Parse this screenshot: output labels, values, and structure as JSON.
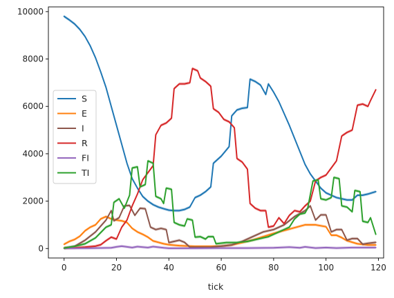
{
  "chart_data": {
    "type": "line",
    "title": "",
    "xlabel": "tick",
    "ylabel": "",
    "xlim": [
      -6,
      122
    ],
    "ylim": [
      -400,
      10200
    ],
    "xticks": [
      0,
      20,
      40,
      60,
      80,
      100,
      120
    ],
    "yticks": [
      0,
      2000,
      4000,
      6000,
      8000,
      10000
    ],
    "grid": false,
    "legend_position": "center-left",
    "has_confidence_band": true,
    "series": [
      {
        "name": "S",
        "color": "#1f77b4",
        "points": [
          [
            0,
            9800
          ],
          [
            2,
            9650
          ],
          [
            4,
            9480
          ],
          [
            6,
            9250
          ],
          [
            8,
            8950
          ],
          [
            10,
            8550
          ],
          [
            12,
            8050
          ],
          [
            14,
            7450
          ],
          [
            16,
            6800
          ],
          [
            18,
            6000
          ],
          [
            20,
            5200
          ],
          [
            22,
            4400
          ],
          [
            24,
            3600
          ],
          [
            26,
            2950
          ],
          [
            28,
            2550
          ],
          [
            30,
            2200
          ],
          [
            32,
            2000
          ],
          [
            34,
            1850
          ],
          [
            36,
            1750
          ],
          [
            38,
            1680
          ],
          [
            40,
            1620
          ],
          [
            42,
            1600
          ],
          [
            44,
            1600
          ],
          [
            46,
            1650
          ],
          [
            48,
            1750
          ],
          [
            50,
            2150
          ],
          [
            52,
            2250
          ],
          [
            54,
            2400
          ],
          [
            56,
            2600
          ],
          [
            57,
            3600
          ],
          [
            60,
            3900
          ],
          [
            63,
            4300
          ],
          [
            64,
            5600
          ],
          [
            66,
            5850
          ],
          [
            68,
            5920
          ],
          [
            70,
            5950
          ],
          [
            71,
            7150
          ],
          [
            73,
            7050
          ],
          [
            75,
            6900
          ],
          [
            77,
            6500
          ],
          [
            78,
            6950
          ],
          [
            80,
            6600
          ],
          [
            82,
            6200
          ],
          [
            84,
            5700
          ],
          [
            86,
            5200
          ],
          [
            88,
            4650
          ],
          [
            90,
            4100
          ],
          [
            92,
            3550
          ],
          [
            94,
            3150
          ],
          [
            96,
            2850
          ],
          [
            98,
            2550
          ],
          [
            100,
            2350
          ],
          [
            102,
            2250
          ],
          [
            104,
            2150
          ],
          [
            106,
            2100
          ],
          [
            108,
            2050
          ],
          [
            110,
            2050
          ],
          [
            112,
            2250
          ],
          [
            114,
            2250
          ],
          [
            116,
            2300
          ],
          [
            119,
            2400
          ]
        ]
      },
      {
        "name": "E",
        "color": "#ff7f0e",
        "points": [
          [
            0,
            180
          ],
          [
            2,
            300
          ],
          [
            4,
            380
          ],
          [
            6,
            520
          ],
          [
            8,
            750
          ],
          [
            10,
            900
          ],
          [
            12,
            1000
          ],
          [
            14,
            1250
          ],
          [
            16,
            1350
          ],
          [
            18,
            1250
          ],
          [
            20,
            1200
          ],
          [
            22,
            1170
          ],
          [
            24,
            1100
          ],
          [
            26,
            850
          ],
          [
            28,
            700
          ],
          [
            30,
            600
          ],
          [
            32,
            480
          ],
          [
            34,
            320
          ],
          [
            36,
            260
          ],
          [
            38,
            200
          ],
          [
            40,
            160
          ],
          [
            44,
            120
          ],
          [
            50,
            90
          ],
          [
            56,
            90
          ],
          [
            60,
            100
          ],
          [
            64,
            150
          ],
          [
            68,
            250
          ],
          [
            72,
            360
          ],
          [
            76,
            500
          ],
          [
            80,
            640
          ],
          [
            84,
            760
          ],
          [
            88,
            880
          ],
          [
            92,
            1000
          ],
          [
            96,
            1000
          ],
          [
            100,
            920
          ],
          [
            102,
            560
          ],
          [
            104,
            560
          ],
          [
            106,
            460
          ],
          [
            108,
            330
          ],
          [
            112,
            200
          ],
          [
            116,
            150
          ],
          [
            119,
            150
          ]
        ]
      },
      {
        "name": "I",
        "color": "#8c564b",
        "points": [
          [
            0,
            20
          ],
          [
            4,
            90
          ],
          [
            8,
            350
          ],
          [
            12,
            700
          ],
          [
            16,
            1200
          ],
          [
            18,
            1600
          ],
          [
            19,
            1170
          ],
          [
            21,
            1300
          ],
          [
            23,
            1800
          ],
          [
            25,
            1820
          ],
          [
            27,
            1400
          ],
          [
            29,
            1700
          ],
          [
            31,
            1680
          ],
          [
            33,
            900
          ],
          [
            35,
            800
          ],
          [
            37,
            850
          ],
          [
            39,
            800
          ],
          [
            40,
            250
          ],
          [
            42,
            300
          ],
          [
            44,
            350
          ],
          [
            46,
            260
          ],
          [
            48,
            60
          ],
          [
            56,
            60
          ],
          [
            60,
            100
          ],
          [
            64,
            150
          ],
          [
            68,
            300
          ],
          [
            72,
            500
          ],
          [
            76,
            700
          ],
          [
            80,
            800
          ],
          [
            84,
            1000
          ],
          [
            88,
            1350
          ],
          [
            92,
            1600
          ],
          [
            94,
            1800
          ],
          [
            96,
            1200
          ],
          [
            98,
            1420
          ],
          [
            100,
            1420
          ],
          [
            102,
            700
          ],
          [
            104,
            800
          ],
          [
            106,
            800
          ],
          [
            108,
            350
          ],
          [
            110,
            420
          ],
          [
            112,
            420
          ],
          [
            114,
            180
          ],
          [
            116,
            220
          ],
          [
            119,
            260
          ]
        ]
      },
      {
        "name": "R",
        "color": "#d62728",
        "points": [
          [
            0,
            20
          ],
          [
            4,
            30
          ],
          [
            8,
            60
          ],
          [
            12,
            100
          ],
          [
            14,
            160
          ],
          [
            16,
            330
          ],
          [
            18,
            480
          ],
          [
            20,
            400
          ],
          [
            22,
            900
          ],
          [
            24,
            1200
          ],
          [
            26,
            1800
          ],
          [
            28,
            2300
          ],
          [
            30,
            2900
          ],
          [
            32,
            3200
          ],
          [
            34,
            3500
          ],
          [
            35,
            4800
          ],
          [
            37,
            5200
          ],
          [
            39,
            5300
          ],
          [
            41,
            5500
          ],
          [
            42,
            6750
          ],
          [
            44,
            6950
          ],
          [
            46,
            6950
          ],
          [
            48,
            7000
          ],
          [
            49,
            7600
          ],
          [
            51,
            7500
          ],
          [
            52,
            7200
          ],
          [
            54,
            7050
          ],
          [
            56,
            6850
          ],
          [
            57,
            5900
          ],
          [
            59,
            5750
          ],
          [
            61,
            5450
          ],
          [
            63,
            5350
          ],
          [
            65,
            5100
          ],
          [
            66,
            3800
          ],
          [
            68,
            3650
          ],
          [
            70,
            3350
          ],
          [
            71,
            1900
          ],
          [
            73,
            1700
          ],
          [
            75,
            1600
          ],
          [
            77,
            1600
          ],
          [
            78,
            900
          ],
          [
            80,
            950
          ],
          [
            82,
            1300
          ],
          [
            84,
            1050
          ],
          [
            86,
            1400
          ],
          [
            88,
            1600
          ],
          [
            90,
            1550
          ],
          [
            92,
            1800
          ],
          [
            94,
            2000
          ],
          [
            96,
            2850
          ],
          [
            98,
            3000
          ],
          [
            100,
            3100
          ],
          [
            102,
            3400
          ],
          [
            104,
            3700
          ],
          [
            106,
            4750
          ],
          [
            108,
            4900
          ],
          [
            110,
            5000
          ],
          [
            112,
            6050
          ],
          [
            114,
            6100
          ],
          [
            116,
            6000
          ],
          [
            117,
            6250
          ],
          [
            119,
            6700
          ]
        ]
      },
      {
        "name": "FI",
        "color": "#9467bd",
        "points": [
          [
            0,
            10
          ],
          [
            10,
            15
          ],
          [
            18,
            30
          ],
          [
            20,
            70
          ],
          [
            22,
            100
          ],
          [
            24,
            70
          ],
          [
            26,
            40
          ],
          [
            28,
            80
          ],
          [
            30,
            60
          ],
          [
            32,
            40
          ],
          [
            34,
            80
          ],
          [
            38,
            30
          ],
          [
            40,
            10
          ],
          [
            50,
            10
          ],
          [
            60,
            20
          ],
          [
            70,
            20
          ],
          [
            80,
            30
          ],
          [
            86,
            60
          ],
          [
            90,
            30
          ],
          [
            92,
            70
          ],
          [
            96,
            20
          ],
          [
            100,
            40
          ],
          [
            104,
            20
          ],
          [
            110,
            40
          ],
          [
            116,
            40
          ],
          [
            119,
            40
          ]
        ]
      },
      {
        "name": "TI",
        "color": "#2ca02c",
        "points": [
          [
            0,
            20
          ],
          [
            4,
            90
          ],
          [
            8,
            200
          ],
          [
            12,
            450
          ],
          [
            16,
            900
          ],
          [
            18,
            1000
          ],
          [
            19,
            1950
          ],
          [
            21,
            2100
          ],
          [
            23,
            1700
          ],
          [
            25,
            2250
          ],
          [
            26,
            3400
          ],
          [
            28,
            3450
          ],
          [
            29,
            2600
          ],
          [
            31,
            2700
          ],
          [
            32,
            3700
          ],
          [
            34,
            3600
          ],
          [
            35,
            2200
          ],
          [
            37,
            2100
          ],
          [
            38,
            1900
          ],
          [
            39,
            2550
          ],
          [
            41,
            2500
          ],
          [
            42,
            1100
          ],
          [
            44,
            1000
          ],
          [
            46,
            950
          ],
          [
            47,
            1250
          ],
          [
            49,
            1200
          ],
          [
            50,
            480
          ],
          [
            52,
            500
          ],
          [
            54,
            400
          ],
          [
            55,
            500
          ],
          [
            57,
            500
          ],
          [
            58,
            200
          ],
          [
            62,
            250
          ],
          [
            66,
            250
          ],
          [
            70,
            300
          ],
          [
            74,
            400
          ],
          [
            78,
            500
          ],
          [
            82,
            700
          ],
          [
            86,
            900
          ],
          [
            88,
            1250
          ],
          [
            90,
            1450
          ],
          [
            92,
            1500
          ],
          [
            93,
            1700
          ],
          [
            95,
            2850
          ],
          [
            97,
            2900
          ],
          [
            98,
            2100
          ],
          [
            100,
            2050
          ],
          [
            102,
            2150
          ],
          [
            103,
            3000
          ],
          [
            105,
            2950
          ],
          [
            106,
            1800
          ],
          [
            108,
            1750
          ],
          [
            110,
            1550
          ],
          [
            111,
            2450
          ],
          [
            113,
            2400
          ],
          [
            114,
            1150
          ],
          [
            116,
            1100
          ],
          [
            117,
            1300
          ],
          [
            119,
            600
          ]
        ]
      }
    ]
  }
}
